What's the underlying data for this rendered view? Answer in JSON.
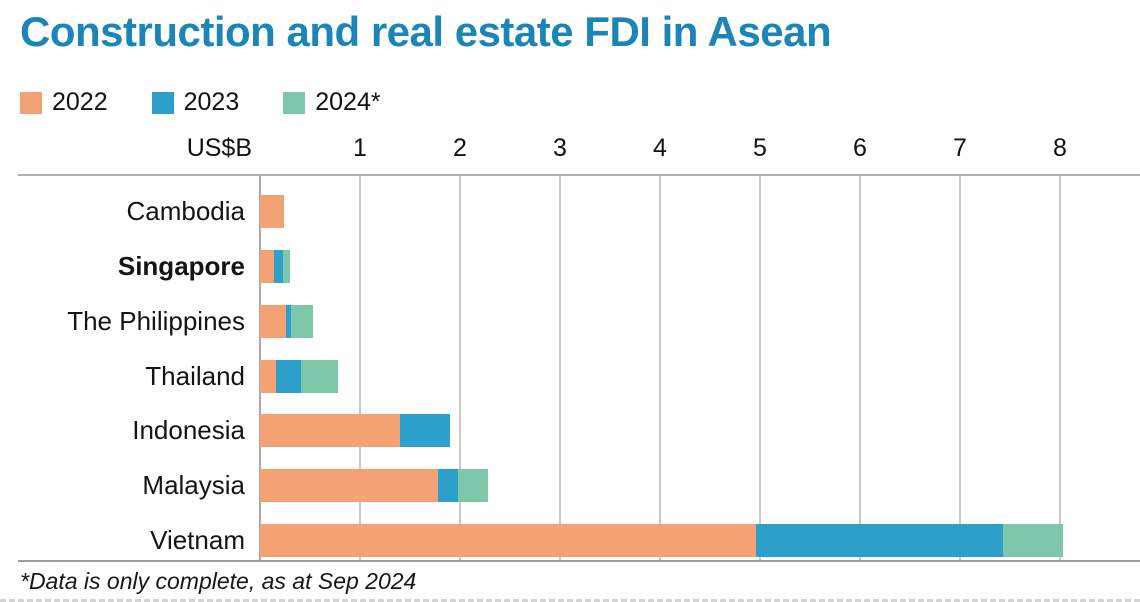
{
  "title": "Construction and real estate FDI in Asean",
  "legend": [
    {
      "label": "2022",
      "color": "#f4a273"
    },
    {
      "label": "2023",
      "color": "#2d9fcb"
    },
    {
      "label": "2024*",
      "color": "#7fc7ab"
    }
  ],
  "axis": {
    "unit_label": "US$B",
    "ticks": [
      1,
      2,
      3,
      4,
      5,
      6,
      7,
      8
    ]
  },
  "footnote": "*Data is only complete, as at Sep 2024",
  "colors": {
    "title_blue": "#1a85b6",
    "series_2022_orange": "#f4a273",
    "series_2023_blue": "#2d9fcb",
    "series_2024_green": "#7fc7ab",
    "gridline_gray": "#c9c9c9",
    "axis_line_gray": "#a9a9a9",
    "text_black": "#141414"
  },
  "chart_data": {
    "type": "bar",
    "orientation": "horizontal",
    "stacked": true,
    "title": "Construction and real estate FDI in Asean",
    "unit": "US$B",
    "xlabel": "US$B",
    "ylabel": "",
    "xlim": [
      0,
      8
    ],
    "grid": true,
    "legend_position": "top",
    "categories": [
      "Cambodia",
      "Singapore",
      "The Philippines",
      "Thailand",
      "Indonesia",
      "Malaysia",
      "Vietnam"
    ],
    "emphasized_category": "Singapore",
    "series": [
      {
        "name": "2022",
        "color": "#f4a273",
        "values": [
          0.24,
          0.14,
          0.26,
          0.16,
          1.4,
          1.78,
          4.96
        ]
      },
      {
        "name": "2023",
        "color": "#2d9fcb",
        "values": [
          0,
          0.09,
          0.05,
          0.25,
          0.5,
          0.2,
          2.47
        ]
      },
      {
        "name": "2024*",
        "color": "#7fc7ab",
        "values": [
          0,
          0.07,
          0.22,
          0.37,
          0,
          0.3,
          0.6
        ]
      }
    ],
    "totals": [
      0.24,
      0.3,
      0.53,
      0.78,
      1.9,
      2.28,
      8.03
    ],
    "note": "*Data is only complete, as at Sep 2024"
  }
}
